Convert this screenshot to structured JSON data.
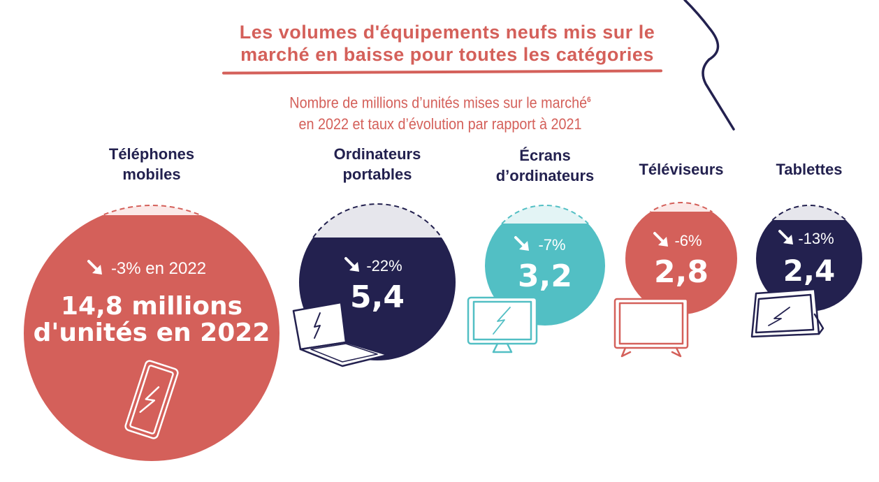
{
  "title": "Les volumes d'équipements neufs mis sur le marché en baisse pour toutes les catégories",
  "subtitle_line1": "Nombre de millions d’unités mises sur le marché",
  "subtitle_footnote": "6",
  "subtitle_line2": "en 2022 et taux d’évolution par rapport à 2021",
  "colors": {
    "red": "#d4605a",
    "navy": "#23214f",
    "teal": "#52bfc4",
    "grey": "#e6e6ec"
  },
  "chart_data": {
    "type": "bubble",
    "unit": "millions d'unités",
    "items": [
      {
        "category_line1": "Téléphones",
        "category_line2": "mobiles",
        "value": 14.8,
        "change_pct": -3,
        "change_label": "-3% en 2022",
        "value_label": "14,8 millions",
        "value_label2": "d'unités en 2022",
        "color": "#d4605a",
        "icon": "smartphone-icon"
      },
      {
        "category_line1": "Ordinateurs",
        "category_line2": "portables",
        "value": 5.4,
        "change_pct": -22,
        "change_label": "-22%",
        "value_label": "5,4",
        "color": "#23214f",
        "icon": "laptop-icon"
      },
      {
        "category_line1": "Écrans",
        "category_line2": "d’ordinateurs",
        "value": 3.2,
        "change_pct": -7,
        "change_label": "-7%",
        "value_label": "3,2",
        "color": "#52bfc4",
        "icon": "monitor-icon"
      },
      {
        "category_line1": "Téléviseurs",
        "category_line2": "",
        "value": 2.8,
        "change_pct": -6,
        "change_label": "-6%",
        "value_label": "2,8",
        "color": "#d4605a",
        "icon": "tv-icon"
      },
      {
        "category_line1": "Tablettes",
        "category_line2": "",
        "value": 2.4,
        "change_pct": -13,
        "change_label": "-13%",
        "value_label": "2,4",
        "color": "#23214f",
        "icon": "tablet-icon"
      }
    ]
  }
}
